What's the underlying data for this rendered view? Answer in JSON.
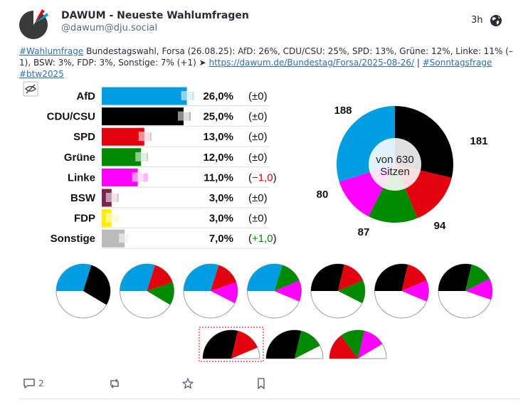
{
  "post": {
    "display_name": "DAWUM - Neueste Wahlumfragen",
    "handle": "@dawum@dju.social",
    "time": "3h",
    "visibility_icon": "globe-icon",
    "avatar_icon": "pie-logo-icon",
    "text": {
      "hashtag1": "#Wahlumfrage",
      "body": " Bundestagswahl, Forsa (26.08.25): AfD: 26%, CDU/CSU: 25%, SPD: 13%, Grüne: 12%, Linke: 11% (–1), BSW: 3%, FDP: 3%, Sonstige: 7% (+1) ➤ ",
      "link": "https://dawum.de/Bundestag/Forsa/2025-08-26/",
      "sep": " | ",
      "hashtag2": "#Sonntagsfrage",
      "space": " ",
      "hashtag3": "#btw2025"
    }
  },
  "actions": {
    "reply_count": "2",
    "reply_icon": "reply-icon",
    "boost_icon": "boost-icon",
    "favourite_icon": "star-icon",
    "bookmark_icon": "bookmark-icon"
  },
  "media": {
    "hide_icon": "eye-slash-icon"
  },
  "colors": {
    "AfD": "#009ee0",
    "CDU/CSU": "#000000",
    "SPD": "#e3000f",
    "Grüne": "#008a00",
    "Linke": "#ff00ff",
    "BSW": "#7d254f",
    "FDP": "#ffee00",
    "Sonstige": "#bbbbbb"
  },
  "chart_data": [
    {
      "type": "bar",
      "categories": [
        "AfD",
        "CDU/CSU",
        "SPD",
        "Grüne",
        "Linke",
        "BSW",
        "FDP",
        "Sonstige"
      ],
      "values": [
        26.0,
        25.0,
        13.0,
        12.0,
        11.0,
        3.0,
        3.0,
        7.0
      ],
      "value_labels": [
        "26,0%",
        "25,0%",
        "13,0%",
        "12,0%",
        "11,0%",
        "3,0%",
        "3,0%",
        "7,0%"
      ],
      "change_labels": [
        "(±0)",
        "(±0)",
        "(±0)",
        "(±0)",
        "(−1,0)",
        "(±0)",
        "(±0)",
        "(+1,0)"
      ],
      "change_values": [
        0,
        0,
        0,
        0,
        -1.0,
        0,
        0,
        1.0
      ],
      "previous_values": [
        26.0,
        25.0,
        13.0,
        12.0,
        12.0,
        3.0,
        3.0,
        6.0
      ],
      "xlim": [
        0,
        30
      ]
    },
    {
      "type": "pie",
      "center_label": [
        "von 630",
        "Sitzen"
      ],
      "slices": [
        {
          "party": "CDU/CSU",
          "value": 181
        },
        {
          "party": "SPD",
          "value": 94
        },
        {
          "party": "Grüne",
          "value": 87
        },
        {
          "party": "Linke",
          "value": 80
        },
        {
          "party": "AfD",
          "value": 188
        }
      ],
      "total": 630
    },
    {
      "type": "pie",
      "coalitions": [
        {
          "parties": [
            "AfD",
            "CDU/CSU"
          ],
          "seats": [
            188,
            181
          ],
          "majority": false
        },
        {
          "parties": [
            "AfD",
            "SPD",
            "Grüne"
          ],
          "seats": [
            188,
            94,
            87
          ],
          "majority": false
        },
        {
          "parties": [
            "AfD",
            "SPD",
            "Linke"
          ],
          "seats": [
            188,
            94,
            80
          ],
          "majority": false
        },
        {
          "parties": [
            "AfD",
            "Grüne",
            "Linke"
          ],
          "seats": [
            188,
            87,
            80
          ],
          "majority": false
        },
        {
          "parties": [
            "CDU/CSU",
            "SPD",
            "Grüne"
          ],
          "seats": [
            181,
            94,
            87
          ],
          "majority": false
        },
        {
          "parties": [
            "CDU/CSU",
            "SPD",
            "Linke"
          ],
          "seats": [
            181,
            94,
            80
          ],
          "majority": false
        },
        {
          "parties": [
            "CDU/CSU",
            "Grüne",
            "Linke"
          ],
          "seats": [
            181,
            87,
            80
          ],
          "majority": false
        }
      ],
      "half_coalitions": [
        {
          "parties": [
            "CDU/CSU",
            "SPD"
          ],
          "seats": [
            181,
            94
          ],
          "highlighted": true
        },
        {
          "parties": [
            "CDU/CSU",
            "Grüne"
          ],
          "seats": [
            181,
            87
          ],
          "highlighted": false
        },
        {
          "parties": [
            "SPD",
            "Grüne",
            "Linke"
          ],
          "seats": [
            94,
            87,
            80
          ],
          "highlighted": false
        }
      ]
    }
  ]
}
